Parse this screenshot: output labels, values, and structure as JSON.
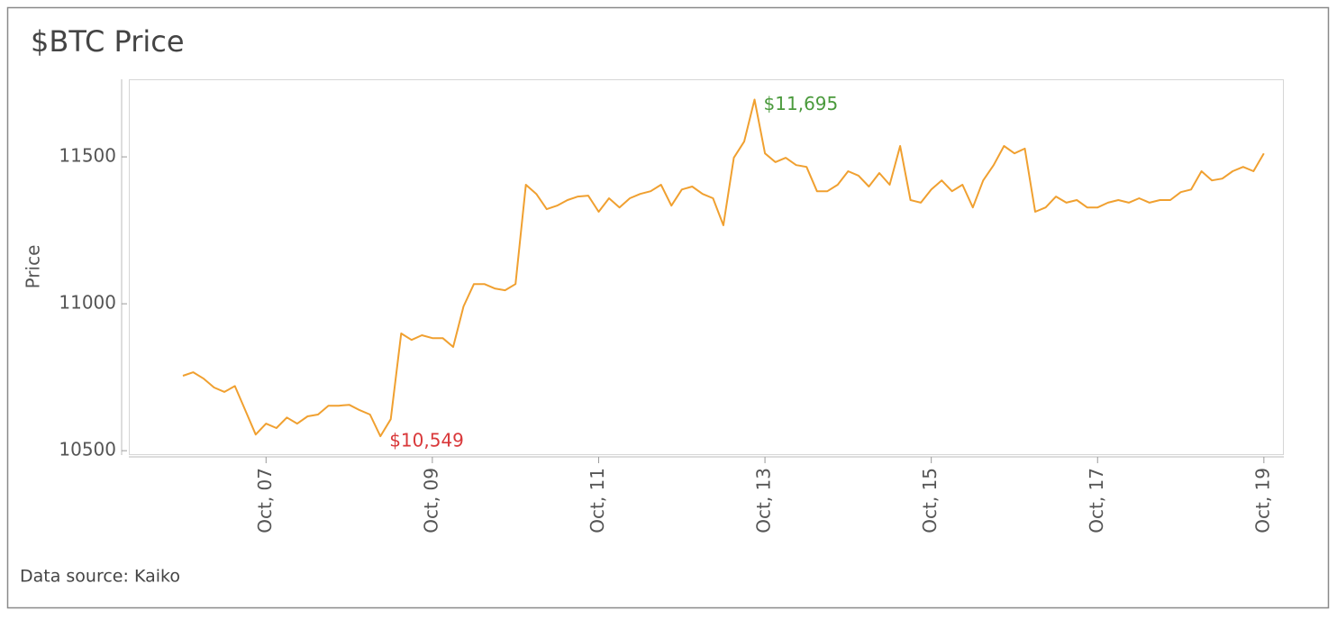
{
  "chart_data": {
    "type": "line",
    "title": "$BTC Price",
    "y_label": "Price",
    "source": "Data source: Kaiko",
    "color": "#f0a030",
    "x": [
      6,
      6.125,
      6.25,
      6.375,
      6.5,
      6.625,
      6.75,
      6.875,
      7,
      7.125,
      7.25,
      7.375,
      7.5,
      7.625,
      7.75,
      7.875,
      8,
      8.125,
      8.25,
      8.375,
      8.5,
      8.625,
      8.75,
      8.875,
      9,
      9.125,
      9.25,
      9.375,
      9.5,
      9.625,
      9.75,
      9.875,
      10,
      10.125,
      10.25,
      10.375,
      10.5,
      10.625,
      10.75,
      10.875,
      11,
      11.125,
      11.25,
      11.375,
      11.5,
      11.625,
      11.75,
      11.875,
      12,
      12.125,
      12.25,
      12.375,
      12.5,
      12.625,
      12.75,
      12.875,
      13,
      13.125,
      13.25,
      13.375,
      13.5,
      13.625,
      13.75,
      13.875,
      14,
      14.125,
      14.25,
      14.375,
      14.5,
      14.625,
      14.75,
      14.875,
      15,
      15.125,
      15.25,
      15.375,
      15.5,
      15.625,
      15.75,
      15.875,
      16,
      16.125,
      16.25,
      16.375,
      16.5,
      16.625,
      16.75,
      16.875,
      17,
      17.125,
      17.25,
      17.375,
      17.5,
      17.625,
      17.75,
      17.875,
      18,
      18.125,
      18.25,
      18.375,
      18.5,
      18.625,
      18.75,
      18.875,
      19
    ],
    "values": [
      10755,
      10767,
      10745,
      10715,
      10700,
      10720,
      10638,
      10555,
      10592,
      10577,
      10613,
      10592,
      10617,
      10623,
      10653,
      10653,
      10656,
      10638,
      10623,
      10549,
      10607,
      10899,
      10877,
      10893,
      10883,
      10883,
      10853,
      10991,
      11067,
      11067,
      11052,
      11046,
      11067,
      11405,
      11374,
      11322,
      11334,
      11353,
      11365,
      11368,
      11313,
      11359,
      11328,
      11359,
      11374,
      11383,
      11405,
      11334,
      11389,
      11399,
      11374,
      11359,
      11267,
      11497,
      11552,
      11695,
      11512,
      11482,
      11497,
      11472,
      11466,
      11383,
      11383,
      11405,
      11451,
      11436,
      11399,
      11445,
      11405,
      11537,
      11353,
      11344,
      11389,
      11420,
      11383,
      11405,
      11328,
      11420,
      11472,
      11537,
      11512,
      11528,
      11313,
      11328,
      11365,
      11344,
      11353,
      11328,
      11328,
      11344,
      11353,
      11344,
      11359,
      11344,
      11353,
      11353,
      11380,
      11389,
      11451,
      11420,
      11426,
      11451,
      11466,
      11451,
      11512
    ],
    "xlim": [
      5.35,
      19.24
    ],
    "ylim": [
      10485,
      11764
    ],
    "yticks": [
      10500,
      11000,
      11500
    ],
    "xticks": [
      {
        "value": 7,
        "label": "Oct, 07"
      },
      {
        "value": 9,
        "label": "Oct, 09"
      },
      {
        "value": 11,
        "label": "Oct, 11"
      },
      {
        "value": 13,
        "label": "Oct, 13"
      },
      {
        "value": 15,
        "label": "Oct, 15"
      },
      {
        "value": 17,
        "label": "Oct, 17"
      },
      {
        "value": 19,
        "label": "Oct, 19"
      }
    ],
    "annotations": [
      {
        "text": "$11,695",
        "x": 12.875,
        "y": 11695,
        "color": "#4a9a3c"
      },
      {
        "text": "$10,549",
        "x": 8.375,
        "y": 10549,
        "color": "#d9383a"
      }
    ]
  }
}
